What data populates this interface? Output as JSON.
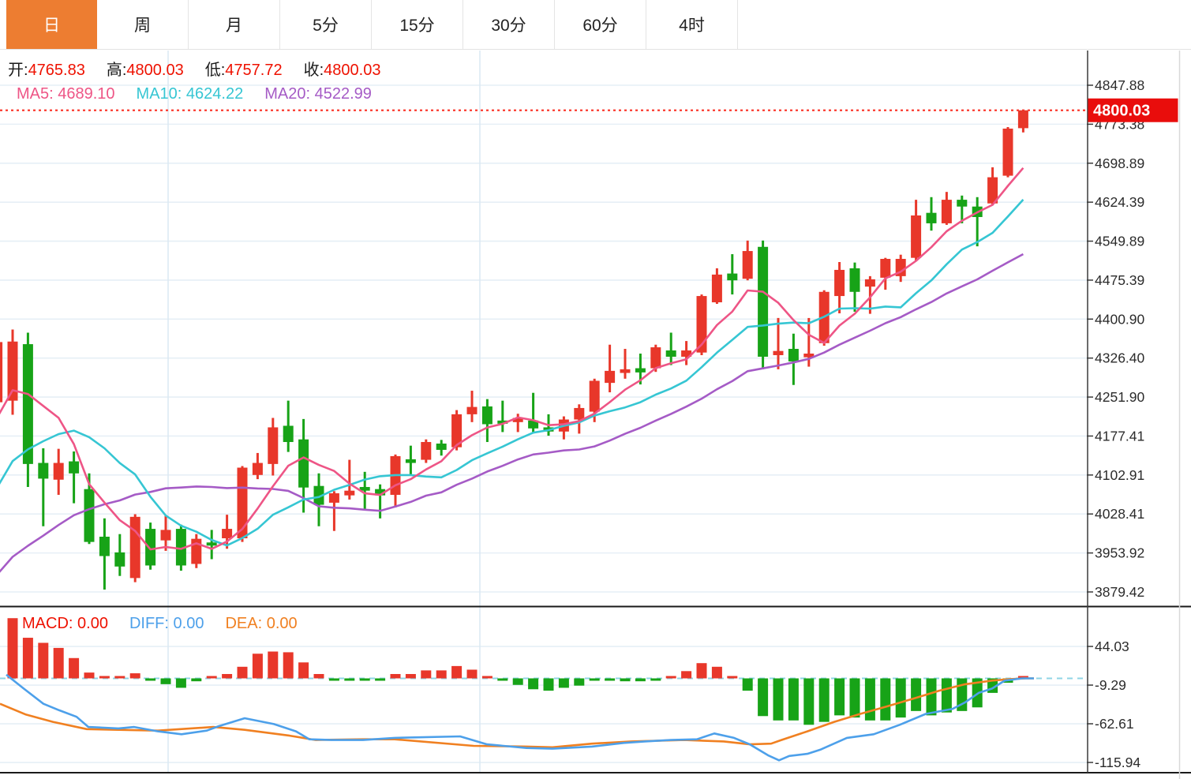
{
  "tabs": {
    "items": [
      {
        "label": "日",
        "active": true
      },
      {
        "label": "周",
        "active": false
      },
      {
        "label": "月",
        "active": false
      },
      {
        "label": "5分",
        "active": false
      },
      {
        "label": "15分",
        "active": false
      },
      {
        "label": "30分",
        "active": false
      },
      {
        "label": "60分",
        "active": false
      },
      {
        "label": "4时",
        "active": false
      }
    ]
  },
  "legend": {
    "open_label": "开:",
    "open_value": "4765.83",
    "high_label": "高:",
    "high_value": "4800.03",
    "low_label": "低:",
    "low_value": "4757.72",
    "close_label": "收:",
    "close_value": "4800.03",
    "ma5_label": "MA5:",
    "ma5_value": "4689.10",
    "ma10_label": "MA10:",
    "ma10_value": "4624.22",
    "ma20_label": "MA20:",
    "ma20_value": "4522.99"
  },
  "macd_legend": {
    "macd_label": "MACD:",
    "macd_value": "0.00",
    "diff_label": "DIFF:",
    "diff_value": "0.00",
    "dea_label": "DEA:",
    "dea_value": "0.00"
  },
  "colors": {
    "accent_tab": "#ed7d31",
    "up": "#e8372a",
    "down": "#17a317",
    "ma5": "#ee5586",
    "ma10": "#36c6d3",
    "ma20": "#a55bc6",
    "diff": "#4da0ea",
    "dea": "#f08021",
    "value_text": "#ee1100",
    "last_price_tag": "#e90d0c",
    "last_price_line": "#fb3a2e",
    "zero_dash": "#8fd4e6",
    "grid": "#e6eff6",
    "vgrid": "#dce9f3",
    "axis_line": "#3a3a3a",
    "axis_text": "#2b2b2b"
  },
  "chart_data": {
    "type": "candlestick+macd",
    "timeframe": "日",
    "price_axis": {
      "labels": [
        "4847.88",
        "4773.38",
        "4698.89",
        "4624.39",
        "4549.89",
        "4475.39",
        "4400.90",
        "4326.40",
        "4251.90",
        "4177.41",
        "4102.91",
        "4028.41",
        "3953.92",
        "3879.42"
      ],
      "max": 4847.88,
      "min": 3879.42,
      "step": 74.495
    },
    "last_price": "4800.03",
    "last_price_value": 4800.03,
    "candles_xohlc": [
      [
        -3.4,
        4242,
        4380,
        4210,
        4357
      ],
      [
        16,
        4245,
        4381,
        4218,
        4358
      ],
      [
        35.4,
        4353,
        4375,
        4080,
        4124
      ],
      [
        54.8,
        4126,
        4154,
        4005,
        4096
      ],
      [
        74.2,
        4094,
        4153,
        4065,
        4126
      ],
      [
        93.6,
        4129,
        4148,
        4049,
        4106
      ],
      [
        113,
        4076,
        4106,
        3971,
        3975
      ],
      [
        132.4,
        3985,
        4020,
        3884,
        3948
      ],
      [
        151.8,
        3955,
        3990,
        3910,
        3928
      ],
      [
        171.2,
        3906,
        4028,
        3898,
        4023
      ],
      [
        190.6,
        4000,
        4012,
        3922,
        3930
      ],
      [
        210,
        3978,
        4026,
        3958,
        3998
      ],
      [
        229.4,
        4000,
        4008,
        3920,
        3930
      ],
      [
        248.8,
        3933,
        3990,
        3925,
        3981
      ],
      [
        268.2,
        3974,
        3998,
        3942,
        3970
      ],
      [
        287.6,
        3982,
        4027,
        3962,
        4000
      ],
      [
        307,
        3982,
        4120,
        3975,
        4117
      ],
      [
        326.4,
        4103,
        4145,
        4095,
        4126
      ],
      [
        345.8,
        4124,
        4212,
        4102,
        4194
      ],
      [
        365.2,
        4197,
        4245,
        4147,
        4166
      ],
      [
        384.6,
        4171,
        4210,
        4031,
        4079
      ],
      [
        404,
        4082,
        4106,
        4005,
        4046
      ],
      [
        423.4,
        4050,
        4072,
        3996,
        4068
      ],
      [
        442.8,
        4064,
        4132,
        4056,
        4073
      ],
      [
        462.2,
        4080,
        4109,
        4038,
        4073
      ],
      [
        481.6,
        4076,
        4085,
        4020,
        4064
      ],
      [
        501,
        4065,
        4142,
        4041,
        4139
      ],
      [
        520.4,
        4133,
        4159,
        4102,
        4126
      ],
      [
        539.8,
        4132,
        4171,
        4126,
        4166
      ],
      [
        559.2,
        4163,
        4170,
        4140,
        4151
      ],
      [
        578.6,
        4156,
        4227,
        4150,
        4219
      ],
      [
        598,
        4219,
        4264,
        4204,
        4233
      ],
      [
        617.4,
        4234,
        4248,
        4166,
        4200
      ],
      [
        636.8,
        4207,
        4245,
        4185,
        4201
      ],
      [
        656.2,
        4204,
        4220,
        4185,
        4212
      ],
      [
        675.6,
        4207,
        4260,
        4185,
        4192
      ],
      [
        695,
        4194,
        4219,
        4178,
        4186
      ],
      [
        714.4,
        4186,
        4215,
        4171,
        4209
      ],
      [
        733.8,
        4209,
        4238,
        4182,
        4231
      ],
      [
        753.2,
        4224,
        4287,
        4204,
        4283
      ],
      [
        772.6,
        4279,
        4352,
        4261,
        4302
      ],
      [
        792,
        4298,
        4344,
        4287,
        4305
      ],
      [
        811.4,
        4307,
        4335,
        4276,
        4299
      ],
      [
        830.8,
        4307,
        4352,
        4300,
        4347
      ],
      [
        850.2,
        4341,
        4375,
        4313,
        4329
      ],
      [
        869.6,
        4329,
        4359,
        4313,
        4341
      ],
      [
        889,
        4337,
        4448,
        4332,
        4445
      ],
      [
        908.4,
        4433,
        4498,
        4430,
        4486
      ],
      [
        927.8,
        4488,
        4525,
        4448,
        4475
      ],
      [
        947.2,
        4478,
        4551,
        4475,
        4531
      ],
      [
        966.6,
        4539,
        4551,
        4305,
        4329
      ],
      [
        986,
        4332,
        4403,
        4305,
        4340
      ],
      [
        1005.4,
        4344,
        4373,
        4275,
        4320
      ],
      [
        1024.8,
        4328,
        4403,
        4310,
        4335
      ],
      [
        1044.2,
        4355,
        4456,
        4350,
        4453
      ],
      [
        1063.6,
        4445,
        4510,
        4412,
        4495
      ],
      [
        1083,
        4498,
        4509,
        4415,
        4453
      ],
      [
        1102.4,
        4463,
        4483,
        4411,
        4477
      ],
      [
        1121.8,
        4480,
        4518,
        4457,
        4516
      ],
      [
        1141.2,
        4483,
        4524,
        4472,
        4516
      ],
      [
        1160.6,
        4518,
        4629,
        4513,
        4599
      ],
      [
        1180,
        4604,
        4634,
        4570,
        4584
      ],
      [
        1199.4,
        4584,
        4644,
        4581,
        4629
      ],
      [
        1218.8,
        4629,
        4637,
        4584,
        4616
      ],
      [
        1238.2,
        4616,
        4634,
        4540,
        4596
      ],
      [
        1257.6,
        4622,
        4691,
        4620,
        4672
      ],
      [
        1277,
        4675,
        4768,
        4672,
        4765
      ],
      [
        1296.4,
        4765.83,
        4800.03,
        4757.72,
        4800.03
      ]
    ],
    "ma_prepad_closes": [
      3680,
      3690,
      3700,
      3710,
      3720,
      3730,
      3745,
      3760,
      3780,
      3800,
      3830,
      3860,
      3900,
      3940,
      3990,
      4040,
      4100,
      4160,
      4210,
      4240
    ],
    "ma_periods": {
      "ma5": 5,
      "ma10": 10,
      "ma20": 20
    },
    "macd": {
      "axis_labels": [
        "44.03",
        "-9.29",
        "-62.61",
        "-115.94"
      ],
      "axis_values": [
        44.03,
        -9.29,
        -62.61,
        -115.94
      ],
      "histogram": [
        83,
        56,
        49,
        42,
        28,
        8,
        2,
        1,
        7,
        -1,
        -8,
        -13,
        -4,
        1,
        6,
        16,
        34,
        37,
        36,
        22,
        6,
        -2,
        -2,
        -2,
        -2,
        6,
        6,
        11,
        11,
        17,
        12,
        2,
        -3,
        -9,
        -15,
        -17,
        -13,
        -10,
        -3,
        -3,
        -4,
        -4,
        -1,
        3,
        10,
        21,
        16,
        2,
        -17,
        -52,
        -58,
        -58,
        -64,
        -60,
        -51,
        -54,
        -58,
        -58,
        -54,
        -45,
        -51,
        -47,
        -45,
        -40,
        -20,
        -6,
        0
      ],
      "diff_line": [
        [
          8,
          5
        ],
        [
          30,
          -14
        ],
        [
          55,
          -35
        ],
        [
          75,
          -44
        ],
        [
          97,
          -53
        ],
        [
          112,
          -67
        ],
        [
          150,
          -69
        ],
        [
          170,
          -67
        ],
        [
          200,
          -73
        ],
        [
          230,
          -77
        ],
        [
          262,
          -72
        ],
        [
          277,
          -66
        ],
        [
          310,
          -55
        ],
        [
          347,
          -63
        ],
        [
          375,
          -73
        ],
        [
          392,
          -84
        ],
        [
          420,
          -85
        ],
        [
          460,
          -85
        ],
        [
          500,
          -82
        ],
        [
          583,
          -80
        ],
        [
          617,
          -91
        ],
        [
          667,
          -96
        ],
        [
          700,
          -97
        ],
        [
          750,
          -94
        ],
        [
          790,
          -89
        ],
        [
          817,
          -87
        ],
        [
          850,
          -85
        ],
        [
          883,
          -84
        ],
        [
          905,
          -76
        ],
        [
          930,
          -82
        ],
        [
          950,
          -91
        ],
        [
          973,
          -106
        ],
        [
          987,
          -113
        ],
        [
          1000,
          -107
        ],
        [
          1023,
          -104
        ],
        [
          1040,
          -98
        ],
        [
          1073,
          -82
        ],
        [
          1107,
          -77
        ],
        [
          1140,
          -64
        ],
        [
          1173,
          -49
        ],
        [
          1207,
          -42
        ],
        [
          1223,
          -33
        ],
        [
          1240,
          -20
        ],
        [
          1257,
          -14
        ],
        [
          1273,
          -3
        ],
        [
          1295,
          0
        ],
        [
          1310,
          0
        ]
      ],
      "dea_line": [
        [
          0,
          -35
        ],
        [
          33,
          -50
        ],
        [
          67,
          -60
        ],
        [
          110,
          -70
        ],
        [
          150,
          -71
        ],
        [
          200,
          -72
        ],
        [
          270,
          -67
        ],
        [
          310,
          -71
        ],
        [
          367,
          -79
        ],
        [
          400,
          -85
        ],
        [
          460,
          -84
        ],
        [
          500,
          -84
        ],
        [
          600,
          -93
        ],
        [
          667,
          -94
        ],
        [
          700,
          -95
        ],
        [
          750,
          -90
        ],
        [
          800,
          -87
        ],
        [
          867,
          -85
        ],
        [
          917,
          -87
        ],
        [
          950,
          -91
        ],
        [
          977,
          -90
        ],
        [
          990,
          -85
        ],
        [
          1023,
          -73
        ],
        [
          1057,
          -60
        ],
        [
          1090,
          -49
        ],
        [
          1123,
          -39
        ],
        [
          1157,
          -28
        ],
        [
          1190,
          -17
        ],
        [
          1223,
          -8
        ],
        [
          1257,
          -3
        ],
        [
          1280,
          -1
        ],
        [
          1300,
          0
        ],
        [
          1310,
          0
        ]
      ]
    }
  }
}
